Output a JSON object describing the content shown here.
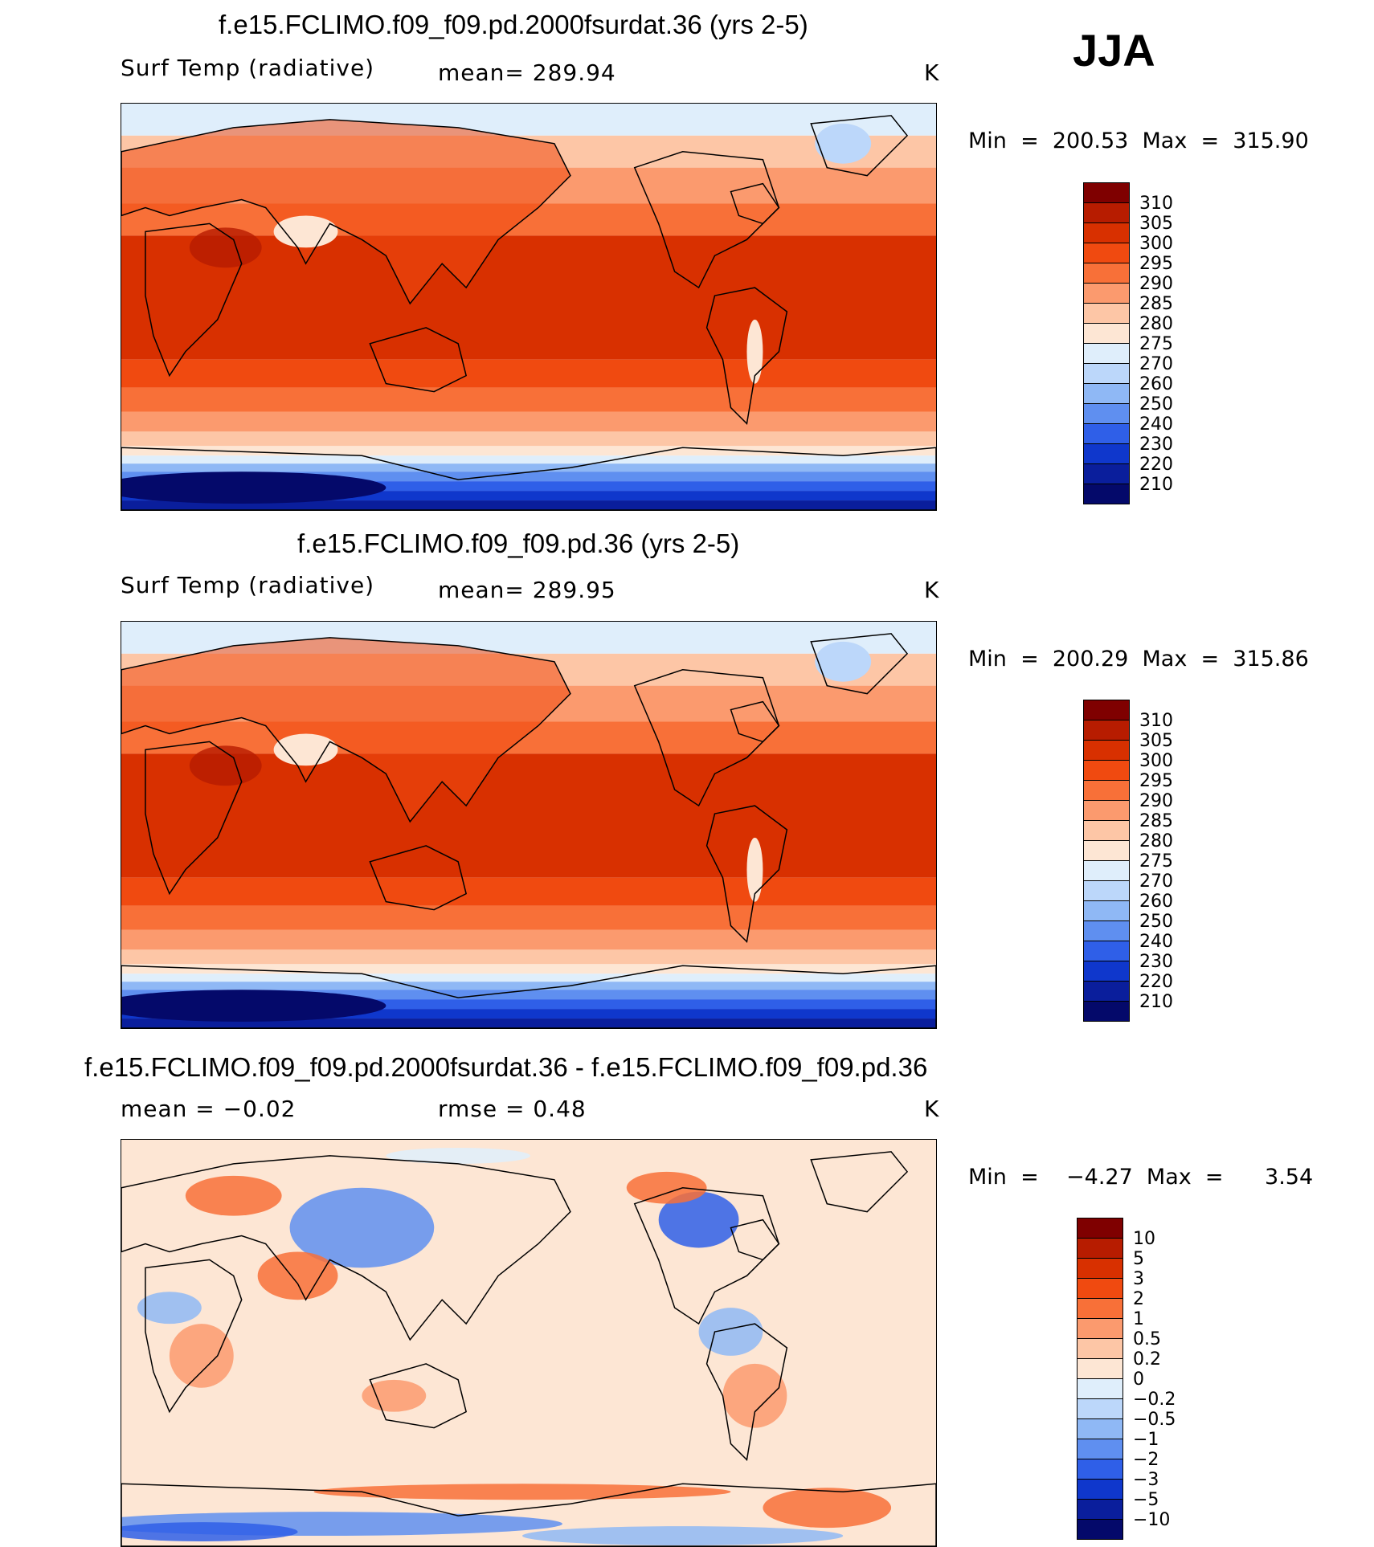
{
  "season": "JJA",
  "panels": [
    {
      "title": "f.e15.FCLIMO.f09_f09.pd.2000fsurdat.36 (yrs 2-5)",
      "variable": "Surf Temp (radiative)",
      "stat": "mean=  289.94",
      "units": "K",
      "minmax": "Min  =  200.53  Max  =  315.90",
      "kind": "abs"
    },
    {
      "title": "f.e15.FCLIMO.f09_f09.pd.36 (yrs 2-5)",
      "variable": "Surf Temp (radiative)",
      "stat": "mean=  289.95",
      "units": "K",
      "minmax": "Min  =  200.29  Max  =  315.86",
      "kind": "abs"
    },
    {
      "title": "f.e15.FCLIMO.f09_f09.pd.2000fsurdat.36 - f.e15.FCLIMO.f09_f09.pd.36",
      "variable": "mean  =    −0.02",
      "stat": "rmse  =     0.48",
      "units": "K",
      "minmax": "Min  =    −4.27  Max  =      3.54",
      "kind": "diff"
    }
  ],
  "colorbars": {
    "abs": {
      "labels": [
        "310",
        "305",
        "300",
        "295",
        "290",
        "285",
        "280",
        "275",
        "270",
        "260",
        "250",
        "240",
        "230",
        "220",
        "210"
      ],
      "colors": [
        "#7f0000",
        "#b71c00",
        "#d83000",
        "#f04a10",
        "#f87038",
        "#fb9a6e",
        "#fdc6a6",
        "#fde6d4",
        "#dfeefb",
        "#bcd7fa",
        "#8fb8f5",
        "#5f8ff0",
        "#2f5fe8",
        "#0f37cc",
        "#0a1e9c",
        "#04096a"
      ]
    },
    "diff": {
      "labels": [
        "10",
        "5",
        "3",
        "2",
        "1",
        "0.5",
        "0.2",
        "0",
        "−0.2",
        "−0.5",
        "−1",
        "−2",
        "−3",
        "−5",
        "−10"
      ],
      "colors": [
        "#7f0000",
        "#b71c00",
        "#d83000",
        "#f04a10",
        "#f87038",
        "#fb9a6e",
        "#fdc6a6",
        "#fde6d4",
        "#dfeefb",
        "#bcd7fa",
        "#8fb8f5",
        "#5f8ff0",
        "#2f5fe8",
        "#0f37cc",
        "#0a1e9c",
        "#04096a"
      ]
    }
  }
}
